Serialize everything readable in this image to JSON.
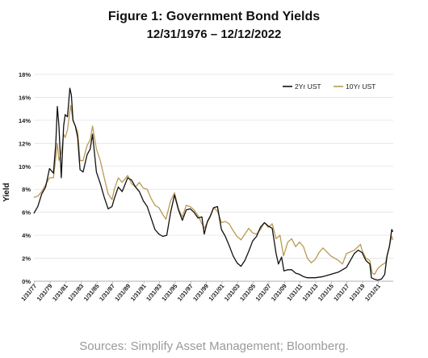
{
  "header": {
    "title": "Figure 1:  Government Bond Yields",
    "subtitle": "12/31/1976 – 12/12/2022"
  },
  "footer": {
    "source": "Sources: Simplify Asset Management; Bloomberg."
  },
  "chart_data": {
    "type": "line",
    "title": "Figure 1:  Government Bond Yields",
    "subtitle": "12/31/1976 – 12/12/2022",
    "xlabel": "",
    "ylabel": "Yield",
    "xlim": [
      1977.0,
      2023.0
    ],
    "ylim": [
      0,
      18
    ],
    "y_ticks": [
      0,
      2,
      4,
      6,
      8,
      10,
      12,
      14,
      16,
      18
    ],
    "y_tick_labels": [
      "0%",
      "2%",
      "4%",
      "6%",
      "8%",
      "10%",
      "12%",
      "14%",
      "16%",
      "18%"
    ],
    "x_tick_labels": [
      "1/31/77",
      "1/31/79",
      "1/31/81",
      "1/31/83",
      "1/31/85",
      "1/31/87",
      "1/31/89",
      "1/31/91",
      "1/31/93",
      "1/31/95",
      "1/31/97",
      "1/31/99",
      "1/31/01",
      "1/31/03",
      "1/31/05",
      "1/31/07",
      "1/31/09",
      "1/31/11",
      "1/31/13",
      "1/31/15",
      "1/31/17",
      "1/31/19",
      "1/31/21"
    ],
    "x_tick_values": [
      1977.08,
      1979.08,
      1981.08,
      1983.08,
      1985.08,
      1987.08,
      1989.08,
      1991.08,
      1993.08,
      1995.08,
      1997.08,
      1999.08,
      2001.08,
      2003.08,
      2005.08,
      2007.08,
      2009.08,
      2011.08,
      2013.08,
      2015.08,
      2017.08,
      2019.08,
      2021.08
    ],
    "grid": "horizontal",
    "legend_position": "top-right",
    "series": [
      {
        "name": "2Yr UST",
        "color": "#111111",
        "x": [
          1976.99,
          1977.5,
          1978.0,
          1978.5,
          1979.0,
          1979.5,
          1979.8,
          1980.0,
          1980.2,
          1980.5,
          1980.8,
          1981.0,
          1981.3,
          1981.6,
          1981.8,
          1982.0,
          1982.3,
          1982.6,
          1982.9,
          1983.3,
          1983.8,
          1984.2,
          1984.5,
          1985.0,
          1985.5,
          1986.0,
          1986.5,
          1987.0,
          1987.3,
          1987.8,
          1988.3,
          1989.0,
          1989.5,
          1990.0,
          1990.5,
          1991.0,
          1991.5,
          1992.0,
          1992.5,
          1993.0,
          1993.5,
          1994.0,
          1994.5,
          1995.0,
          1995.5,
          1996.0,
          1996.5,
          1997.0,
          1997.5,
          1998.0,
          1998.5,
          1998.8,
          1999.2,
          1999.6,
          2000.0,
          2000.5,
          2001.0,
          2001.5,
          2002.0,
          2002.5,
          2003.0,
          2003.5,
          2004.0,
          2004.5,
          2005.0,
          2005.5,
          2006.0,
          2006.5,
          2007.0,
          2007.5,
          2008.0,
          2008.3,
          2008.7,
          2009.0,
          2009.5,
          2010.0,
          2010.5,
          2011.0,
          2011.5,
          2012.0,
          2013.0,
          2014.0,
          2015.0,
          2016.0,
          2017.0,
          2018.0,
          2018.5,
          2019.0,
          2019.5,
          2020.0,
          2020.2,
          2020.5,
          2021.0,
          2021.5,
          2021.9,
          2022.2,
          2022.5,
          2022.8,
          2022.95
        ],
        "y": [
          5.9,
          6.5,
          7.6,
          8.2,
          9.8,
          9.4,
          12.0,
          15.2,
          13.5,
          9.0,
          13.5,
          14.5,
          14.3,
          16.8,
          16.2,
          14.0,
          13.5,
          12.5,
          9.7,
          9.5,
          11.0,
          11.5,
          12.8,
          9.5,
          8.5,
          7.3,
          6.3,
          6.5,
          7.2,
          8.2,
          7.8,
          9.0,
          8.8,
          8.2,
          7.8,
          7.0,
          6.5,
          5.5,
          4.5,
          4.1,
          3.9,
          4.0,
          6.0,
          7.5,
          6.2,
          5.3,
          6.2,
          6.3,
          6.0,
          5.5,
          5.6,
          4.1,
          5.2,
          5.7,
          6.4,
          6.5,
          4.5,
          3.9,
          3.1,
          2.2,
          1.6,
          1.3,
          1.8,
          2.6,
          3.5,
          3.9,
          4.7,
          5.1,
          4.8,
          4.6,
          2.4,
          1.5,
          2.1,
          0.9,
          1.0,
          1.0,
          0.7,
          0.6,
          0.4,
          0.3,
          0.3,
          0.4,
          0.6,
          0.8,
          1.2,
          2.4,
          2.7,
          2.5,
          1.8,
          1.5,
          0.3,
          0.2,
          0.1,
          0.2,
          0.6,
          2.2,
          3.0,
          4.5,
          4.3
        ]
      },
      {
        "name": "10Yr UST",
        "color": "#b99a55",
        "x": [
          1976.99,
          1977.5,
          1978.0,
          1978.5,
          1979.0,
          1979.5,
          1980.0,
          1980.2,
          1980.5,
          1980.8,
          1981.0,
          1981.3,
          1981.7,
          1982.0,
          1982.3,
          1982.6,
          1982.9,
          1983.3,
          1983.8,
          1984.2,
          1984.5,
          1985.0,
          1985.5,
          1986.0,
          1986.5,
          1987.0,
          1987.3,
          1987.8,
          1988.3,
          1989.0,
          1989.5,
          1990.0,
          1990.5,
          1991.0,
          1991.5,
          1992.0,
          1992.5,
          1993.0,
          1993.5,
          1993.9,
          1994.5,
          1995.0,
          1995.5,
          1996.0,
          1996.5,
          1997.0,
          1997.5,
          1998.0,
          1998.8,
          1999.5,
          2000.0,
          2000.5,
          2001.0,
          2001.5,
          2002.0,
          2002.5,
          2003.0,
          2003.5,
          2004.0,
          2004.5,
          2005.0,
          2005.5,
          2006.0,
          2006.5,
          2007.0,
          2007.5,
          2008.0,
          2008.5,
          2008.95,
          2009.5,
          2010.0,
          2010.5,
          2011.0,
          2011.5,
          2012.0,
          2012.5,
          2013.0,
          2013.5,
          2014.0,
          2015.0,
          2016.0,
          2016.5,
          2017.0,
          2018.0,
          2018.8,
          2019.0,
          2019.5,
          2020.0,
          2020.3,
          2020.6,
          2021.0,
          2021.5,
          2022.0,
          2022.3,
          2022.8,
          2022.95
        ],
        "y": [
          7.3,
          7.4,
          7.8,
          8.4,
          9.0,
          9.0,
          12.0,
          10.5,
          11.2,
          12.8,
          12.5,
          13.2,
          15.3,
          14.0,
          13.5,
          13.0,
          10.5,
          10.5,
          11.8,
          12.3,
          13.5,
          11.5,
          10.5,
          9.0,
          7.6,
          7.1,
          8.0,
          9.0,
          8.6,
          9.2,
          8.5,
          8.2,
          8.6,
          8.1,
          8.0,
          7.2,
          6.6,
          6.4,
          5.8,
          5.4,
          7.0,
          7.7,
          6.3,
          5.6,
          6.6,
          6.5,
          6.2,
          5.7,
          4.6,
          5.5,
          6.4,
          6.1,
          5.1,
          5.2,
          5.0,
          4.4,
          3.9,
          3.6,
          4.1,
          4.6,
          4.2,
          4.1,
          4.5,
          5.1,
          4.7,
          5.0,
          3.7,
          4.0,
          2.2,
          3.4,
          3.7,
          3.0,
          3.4,
          3.0,
          2.0,
          1.6,
          1.9,
          2.5,
          2.9,
          2.2,
          1.8,
          1.5,
          2.4,
          2.7,
          3.2,
          2.7,
          2.0,
          1.8,
          0.7,
          0.6,
          1.1,
          1.4,
          1.6,
          2.5,
          3.9,
          3.6
        ]
      }
    ]
  }
}
